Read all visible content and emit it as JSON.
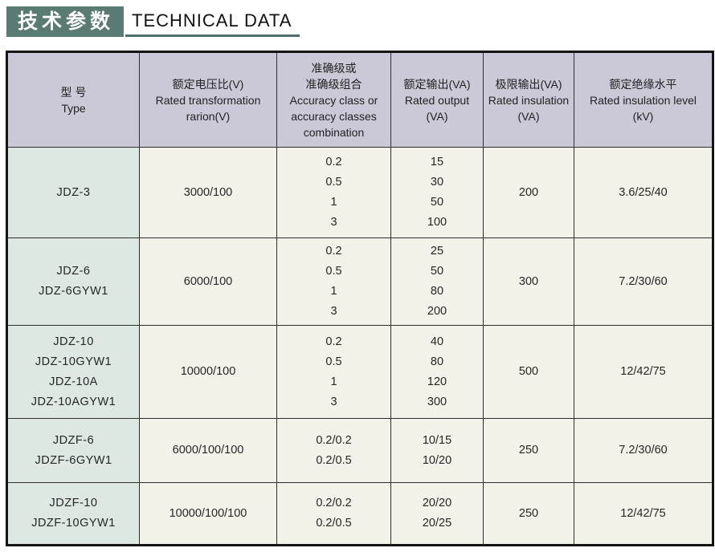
{
  "colors": {
    "banner": "#5a7a74",
    "underline": "#4e6f69",
    "header_bg": "#cbc9d7",
    "type_col_bg": "#dde8e3",
    "cell_bg": "#f2f2e8",
    "border": "#2f2f2f",
    "text": "#262626"
  },
  "page_header": {
    "title_cn": "技术参数",
    "title_en": "TECHNICAL DATA"
  },
  "table": {
    "columns": [
      {
        "id": "type",
        "lines": [
          "型  号",
          "Type"
        ]
      },
      {
        "id": "ratio",
        "lines": [
          "额定电压比(V)",
          "Rated transformation",
          "rarion(V)"
        ]
      },
      {
        "id": "accuracy",
        "lines": [
          "准确级或",
          "准确级组合",
          "Accuracy class or",
          "accuracy classes",
          "combination"
        ]
      },
      {
        "id": "rated_output",
        "lines": [
          "额定输出(VA)",
          "Rated output",
          "(VA)"
        ]
      },
      {
        "id": "limit_output",
        "lines": [
          "极限输出(VA)",
          "Rated insulation",
          "(VA)"
        ]
      },
      {
        "id": "insulation_level",
        "lines": [
          "额定绝缘水平",
          "Rated insulation level",
          "(kV)"
        ]
      }
    ],
    "rows": [
      {
        "type": [
          "JDZ-3"
        ],
        "ratio": [
          "3000/100"
        ],
        "accuracy": [
          "0.2",
          "0.5",
          "1",
          "3"
        ],
        "rated_output": [
          "15",
          "30",
          "50",
          "100"
        ],
        "limit_output": [
          "200"
        ],
        "insulation_level": [
          "3.6/25/40"
        ]
      },
      {
        "type": [
          "JDZ-6",
          "JDZ-6GYW1"
        ],
        "ratio": [
          "6000/100"
        ],
        "accuracy": [
          "0.2",
          "0.5",
          "1",
          "3"
        ],
        "rated_output": [
          "25",
          "50",
          "80",
          "200"
        ],
        "limit_output": [
          "300"
        ],
        "insulation_level": [
          "7.2/30/60"
        ]
      },
      {
        "type": [
          "JDZ-10",
          "JDZ-10GYW1",
          "JDZ-10A",
          "JDZ-10AGYW1"
        ],
        "ratio": [
          "10000/100"
        ],
        "accuracy": [
          "0.2",
          "0.5",
          "1",
          "3"
        ],
        "rated_output": [
          "40",
          "80",
          "120",
          "300"
        ],
        "limit_output": [
          "500"
        ],
        "insulation_level": [
          "12/42/75"
        ]
      },
      {
        "type": [
          "JDZF-6",
          "JDZF-6GYW1"
        ],
        "ratio": [
          "6000/100/100"
        ],
        "accuracy": [
          "0.2/0.2",
          "0.2/0.5"
        ],
        "rated_output": [
          "10/15",
          "10/20"
        ],
        "limit_output": [
          "250"
        ],
        "insulation_level": [
          "7.2/30/60"
        ]
      },
      {
        "type": [
          "JDZF-10",
          "JDZF-10GYW1"
        ],
        "ratio": [
          "10000/100/100"
        ],
        "accuracy": [
          "0.2/0.2",
          "0.2/0.5"
        ],
        "rated_output": [
          "20/20",
          "20/25"
        ],
        "limit_output": [
          "250"
        ],
        "insulation_level": [
          "12/42/75"
        ]
      }
    ]
  }
}
